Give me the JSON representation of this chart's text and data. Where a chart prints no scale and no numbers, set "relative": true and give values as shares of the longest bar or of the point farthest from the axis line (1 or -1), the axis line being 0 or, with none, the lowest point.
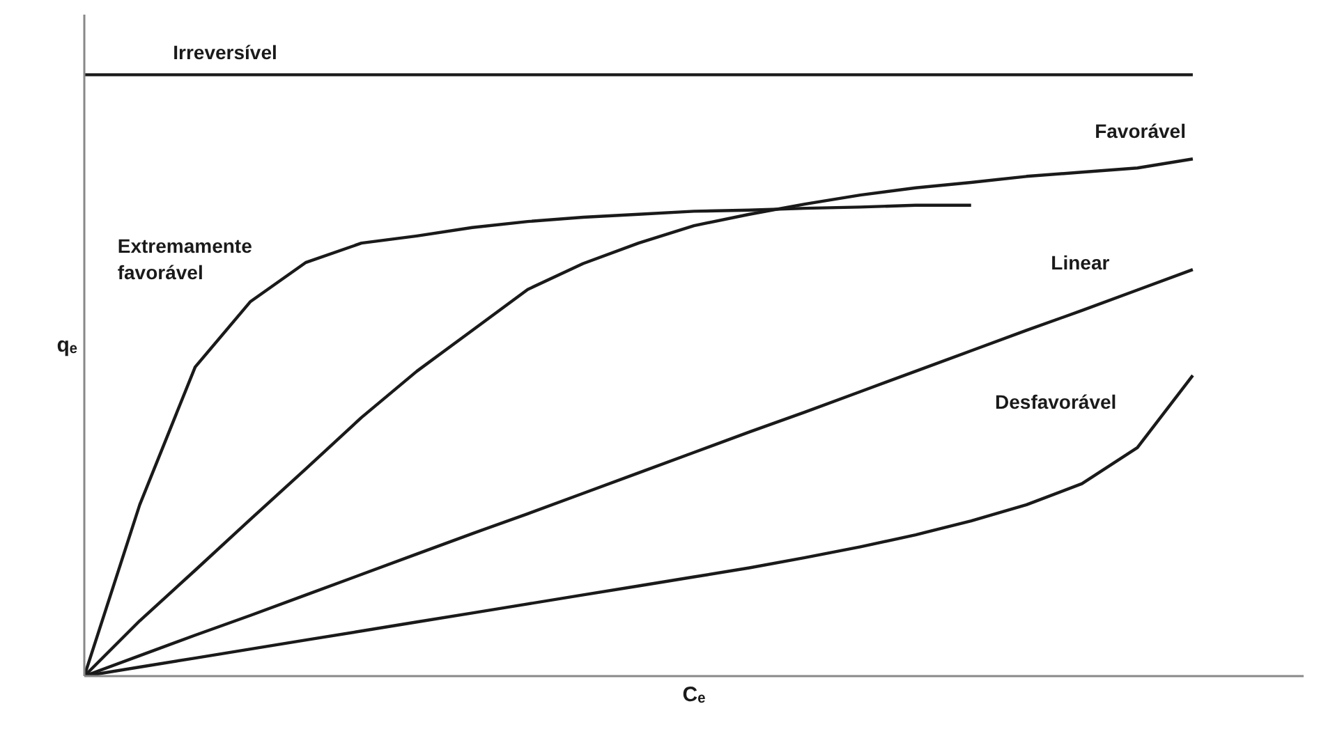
{
  "chart_data": {
    "type": "line",
    "relative": true,
    "xlabel": "Cₑ",
    "ylabel": "qₑ",
    "categories": [
      null,
      null,
      null,
      null,
      null,
      null,
      null,
      null,
      null,
      null,
      null,
      null,
      null,
      null,
      null,
      null,
      null,
      null,
      null,
      null,
      null
    ],
    "series": [
      {
        "name": "Irreversível",
        "color": "#1a1a1a",
        "values": [
          1,
          1,
          1,
          1,
          1,
          1,
          1,
          1,
          1,
          1,
          1,
          1,
          1,
          1,
          1,
          1,
          1,
          1,
          1,
          1,
          1
        ]
      },
      {
        "name": "Extremamente favorável",
        "color": "#1a1a1a",
        "values": [
          0,
          0.285,
          0.514,
          0.623,
          0.688,
          0.72,
          0.732,
          0.746,
          0.756,
          0.763,
          0.768,
          0.773,
          0.775,
          0.778,
          0.78,
          0.783,
          0.783,
          null,
          null,
          null,
          null
        ]
      },
      {
        "name": "Favorável",
        "color": "#1a1a1a",
        "values": [
          0,
          0.092,
          0.176,
          0.261,
          0.345,
          0.43,
          0.507,
          0.575,
          0.643,
          0.686,
          0.72,
          0.749,
          0.768,
          0.785,
          0.8,
          0.812,
          0.821,
          0.831,
          0.838,
          0.845,
          0.86
        ]
      },
      {
        "name": "Linear",
        "color": "#1a1a1a",
        "values": [
          0,
          0.034,
          0.068,
          0.101,
          0.135,
          0.169,
          0.203,
          0.237,
          0.27,
          0.304,
          0.338,
          0.372,
          0.406,
          0.439,
          0.473,
          0.507,
          0.541,
          0.575,
          0.608,
          0.642,
          0.676
        ]
      },
      {
        "name": "Desfavorável",
        "color": "#1a1a1a",
        "values": [
          0,
          0.015,
          0.03,
          0.045,
          0.06,
          0.075,
          0.09,
          0.105,
          0.12,
          0.135,
          0.15,
          0.165,
          0.18,
          0.197,
          0.215,
          0.235,
          0.258,
          0.285,
          0.32,
          0.38,
          0.5
        ]
      }
    ]
  }
}
